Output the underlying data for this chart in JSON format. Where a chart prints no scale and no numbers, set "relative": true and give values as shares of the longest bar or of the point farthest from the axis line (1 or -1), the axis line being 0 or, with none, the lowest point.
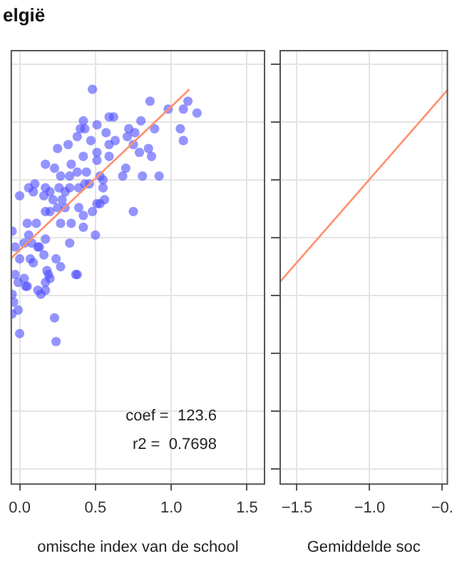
{
  "chart_data": [
    {
      "type": "scatter",
      "title": "elgië",
      "xlabel": "omische index van de school",
      "relative": true,
      "grid": true,
      "xlim": [
        -0.06,
        1.62
      ],
      "xticks": [
        {
          "value": 0,
          "label": "0.0"
        },
        0.5,
        {
          "value": 1,
          "label": "1.0"
        },
        1.5
      ],
      "annotations": [
        "coef =  123.6",
        "r2 =  0.7698"
      ],
      "series": [
        {
          "marker": "circle",
          "color": "#4d4dff",
          "x": [
            0.48,
            0.86,
            1.11,
            1.17,
            1.08,
            0.98,
            1.06,
            1.08,
            0.92,
            0.89,
            0.8,
            0.62,
            0.59,
            0.42,
            0.4,
            0.51,
            0.43,
            0.38,
            0.47,
            0.25,
            0.32,
            0.57,
            0.59,
            0.63,
            0.71,
            0.72,
            0.76,
            0.75,
            0.79,
            0.85,
            0.87,
            0.81,
            0.68,
            0.7,
            0.59,
            0.51,
            0.42,
            0.34,
            0.23,
            0.17,
            0.27,
            0.33,
            0.38,
            0.44,
            0.51,
            0.53,
            0.55,
            0.46,
            0.43,
            0.39,
            0.33,
            0.3,
            0.26,
            0.2,
            0.17,
            0.1,
            0.06,
            0.0,
            0.09,
            0.16,
            0.22,
            0.28,
            0.3,
            0.25,
            0.2,
            0.17,
            0.39,
            0.42,
            0.48,
            0.51,
            0.53,
            0.56,
            0.55,
            0.75,
            0.5,
            0.42,
            0.34,
            0.27,
            0.11,
            0.05,
            0.06,
            0.17,
            0.13,
            0.08,
            0.03,
            -0.03,
            0.0,
            0.07,
            0.16,
            0.24,
            0.33,
            0.37,
            0.18,
            0.17,
            0.03,
            -0.05,
            -0.03,
            0.04,
            0.12,
            0.27,
            0.38,
            0.19,
            0.2,
            0.12,
            0.14,
            0.17,
            0.05,
            -0.01,
            -0.05,
            -0.04,
            -0.01,
            -0.05,
            0.0,
            0.23,
            0.24,
            0.09
          ],
          "values": [
            1.0,
            0.97,
            0.97,
            0.94,
            0.95,
            0.95,
            0.9,
            0.87,
            0.78,
            0.9,
            0.92,
            0.93,
            0.93,
            0.92,
            0.9,
            0.91,
            0.9,
            0.88,
            0.87,
            0.85,
            0.86,
            0.89,
            0.86,
            0.87,
            0.88,
            0.9,
            0.89,
            0.86,
            0.84,
            0.85,
            0.83,
            0.78,
            0.78,
            0.8,
            0.83,
            0.84,
            0.83,
            0.81,
            0.8,
            0.81,
            0.78,
            0.78,
            0.79,
            0.79,
            0.82,
            0.78,
            0.77,
            0.76,
            0.76,
            0.75,
            0.75,
            0.74,
            0.75,
            0.74,
            0.75,
            0.76,
            0.75,
            0.73,
            0.74,
            0.73,
            0.72,
            0.72,
            0.7,
            0.7,
            0.69,
            0.69,
            0.7,
            0.68,
            0.69,
            0.71,
            0.71,
            0.72,
            0.75,
            0.69,
            0.63,
            0.65,
            0.66,
            0.66,
            0.66,
            0.66,
            0.63,
            0.62,
            0.6,
            0.61,
            0.61,
            0.6,
            0.57,
            0.57,
            0.58,
            0.57,
            0.61,
            0.53,
            0.54,
            0.51,
            0.52,
            0.64,
            0.53,
            0.5,
            0.6,
            0.55,
            0.53,
            0.53,
            0.52,
            0.49,
            0.48,
            0.49,
            0.5,
            0.51,
            0.48,
            0.46,
            0.44,
            0.43,
            0.38,
            0.42,
            0.36,
            0.56
          ]
        },
        {
          "type": "line",
          "marker": "none",
          "color": "#ff9070",
          "x": [
            -0.06,
            1.12
          ],
          "values": [
            0.57,
            1.0
          ]
        }
      ]
    },
    {
      "type": "line",
      "xlabel": "Gemiddelde soc",
      "relative": true,
      "grid": true,
      "xlim": [
        -1.62,
        -0.46
      ],
      "xticks": [
        {
          "value": -1.5,
          "label": "−1.5"
        },
        {
          "value": -1,
          "label": "−1.0"
        },
        {
          "value": -0.5,
          "label": "−0."
        }
      ],
      "series": [
        {
          "marker": "none",
          "color": "#ff9070",
          "x": [
            -1.62,
            -0.46
          ],
          "values": [
            0.51,
            1.0
          ]
        }
      ]
    }
  ]
}
